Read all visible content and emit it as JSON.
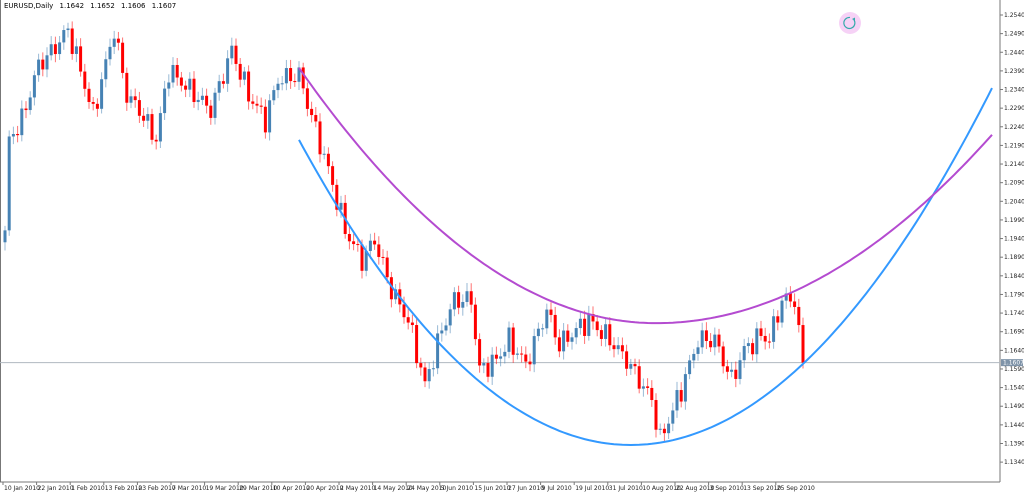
{
  "header": {
    "symbol": "EURUSD,Daily",
    "open": "1.1642",
    "high": "1.1652",
    "low": "1.1606",
    "close": "1.1607"
  },
  "reload_icon": "refresh-icon",
  "colors": {
    "bull": "#4682b4",
    "bear": "#ff0000",
    "curve_blue": "#3399ff",
    "curve_purple": "#b44bd0",
    "axis": "#777777",
    "price_line": "#b0b8c0",
    "price_label_bg": "#7f93a8"
  },
  "chart_data": {
    "type": "candlestick",
    "title": "EURUSD,Daily",
    "ylim": [
      1.1315,
      1.2575
    ],
    "y_ticks": [
      "1.2540",
      "1.2490",
      "1.2440",
      "1.2390",
      "1.2340",
      "1.2290",
      "1.2240",
      "1.2190",
      "1.2140",
      "1.2090",
      "1.2040",
      "1.1990",
      "1.1940",
      "1.1890",
      "1.1840",
      "1.1790",
      "1.1740",
      "1.1690",
      "1.1640",
      "1.1590",
      "1.1540",
      "1.1490",
      "1.1440",
      "1.1390",
      "1.1340"
    ],
    "x_ticks": [
      "10 Jan 2010",
      "22 Jan 2010",
      "1 Feb 2010",
      "13 Feb 2010",
      "23 Feb 2010",
      "7 Mar 2010",
      "19 Mar 2010",
      "29 Mar 2010",
      "10 Apr 2010",
      "20 Apr 2010",
      "2 May 2010",
      "14 May 2010",
      "24 May 2010",
      "5 Jun 2010",
      "15 Jun 2010",
      "27 Jun 2010",
      "9 Jul 2010",
      "19 Jul 2010",
      "31 Jul 2010",
      "10 Aug 2010",
      "22 Aug 2010",
      "3 Sep 2010",
      "13 Sep 2010",
      "25 Sep 2010"
    ],
    "x_tick_every_bars": 8,
    "current_price": "1.1607",
    "close_keypoints": [
      [
        0,
        1.195
      ],
      [
        1,
        1.2205
      ],
      [
        4,
        1.2258
      ],
      [
        8,
        1.2406
      ],
      [
        11,
        1.244
      ],
      [
        15,
        1.25
      ],
      [
        18,
        1.2392
      ],
      [
        21,
        1.2272
      ],
      [
        26,
        1.25
      ],
      [
        29,
        1.2325
      ],
      [
        32,
        1.2285
      ],
      [
        36,
        1.2205
      ],
      [
        39,
        1.2392
      ],
      [
        44,
        1.2339
      ],
      [
        49,
        1.2285
      ],
      [
        54,
        1.2446
      ],
      [
        58,
        1.2325
      ],
      [
        62,
        1.2258
      ],
      [
        65,
        1.2366
      ],
      [
        70,
        1.2379
      ],
      [
        74,
        1.2231
      ],
      [
        77,
        1.2124
      ],
      [
        81,
        1.1963
      ],
      [
        85,
        1.1882
      ],
      [
        88,
        1.1936
      ],
      [
        92,
        1.1802
      ],
      [
        96,
        1.1721
      ],
      [
        100,
        1.1547
      ],
      [
        104,
        1.1695
      ],
      [
        107,
        1.1775
      ],
      [
        111,
        1.1775
      ],
      [
        113,
        1.1587
      ],
      [
        117,
        1.1614
      ],
      [
        120,
        1.1668
      ],
      [
        124,
        1.1601
      ],
      [
        129,
        1.1748
      ],
      [
        132,
        1.1654
      ],
      [
        136,
        1.1695
      ],
      [
        139,
        1.1721
      ],
      [
        144,
        1.1668
      ],
      [
        148,
        1.1614
      ],
      [
        151,
        1.156
      ],
      [
        154,
        1.1507
      ],
      [
        156,
        1.1399
      ],
      [
        158,
        1.1453
      ],
      [
        161,
        1.1534
      ],
      [
        163,
        1.1601
      ],
      [
        165,
        1.1668
      ],
      [
        169,
        1.1668
      ],
      [
        173,
        1.156
      ],
      [
        176,
        1.1641
      ],
      [
        180,
        1.1681
      ],
      [
        182,
        1.1668
      ],
      [
        185,
        1.1775
      ],
      [
        188,
        1.1775
      ],
      [
        190,
        1.1607
      ]
    ],
    "curves": [
      {
        "name": "blue-parabola",
        "color": "#3399ff",
        "start_bar": 70,
        "vertex_bar": 149,
        "vertex_price": 1.1386,
        "left_coef": 1.312e-05,
        "right_coef": 1.295e-05,
        "end_bar": 235
      },
      {
        "name": "purple-parabola",
        "color": "#b44bd0",
        "start_bar": 70,
        "vertex_bar": 155,
        "vertex_price": 1.1713,
        "left_coef": 9.48e-06,
        "right_coef": 7.9e-06,
        "end_bar": 235
      }
    ]
  }
}
